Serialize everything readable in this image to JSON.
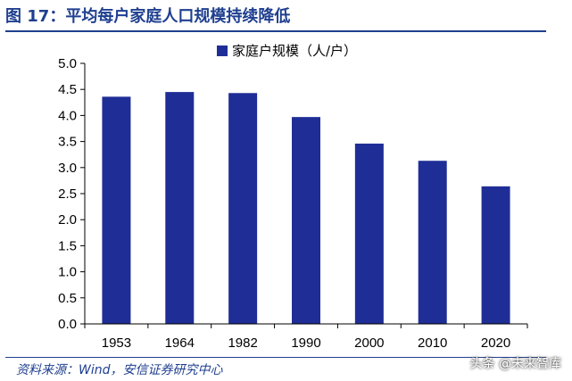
{
  "title": "图 17：平均每户家庭人口规模持续降低",
  "source": "资料来源：Wind，安信证券研究中心",
  "watermark": "头条 @未来智库",
  "colors": {
    "bar": "#1f2e96",
    "accent": "#1f3f8f"
  },
  "chart_data": {
    "type": "bar",
    "categories": [
      "1953",
      "1964",
      "1982",
      "1990",
      "2000",
      "2010",
      "2020"
    ],
    "series": [
      {
        "name": "家庭户规模（人/户）",
        "values": [
          4.36,
          4.45,
          4.43,
          3.97,
          3.46,
          3.13,
          2.64
        ]
      }
    ],
    "ylim": [
      0,
      5.0
    ],
    "yticks": [
      "0.0",
      "0.5",
      "1.0",
      "1.5",
      "2.0",
      "2.5",
      "3.0",
      "3.5",
      "4.0",
      "4.5",
      "5.0"
    ],
    "legend_position": "top-center",
    "grid": false
  }
}
